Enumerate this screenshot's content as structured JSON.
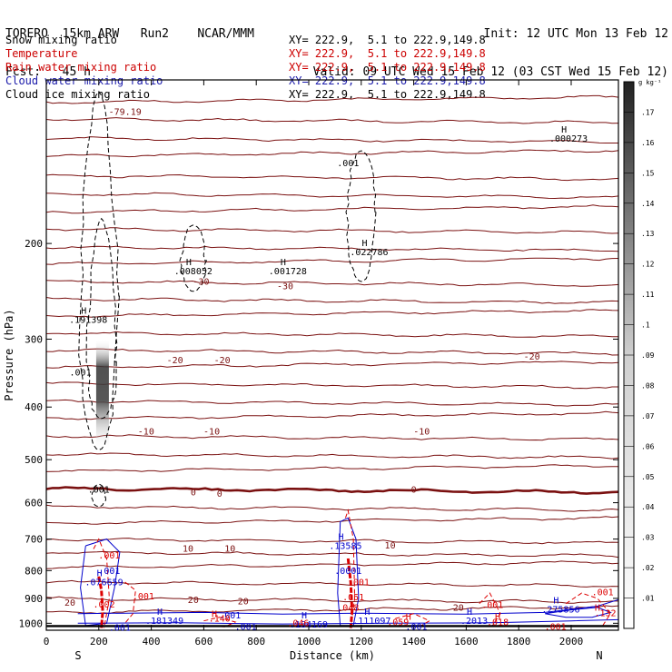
{
  "header": {
    "line1_left": "TORERO  15km ARW   Run2    NCAR/MMM",
    "line2_left": "Fcst:   45 h",
    "line1_right": "Init: 12 UTC Mon 13 Feb 12",
    "line2_right": "Valid: 09 UTC Wed 15 Feb 12 (03 CST Wed 15 Feb 12)"
  },
  "variables": [
    {
      "label": "Snow mixing ratio",
      "xy": "XY= 222.9,  5.1 to 222.9,149.8",
      "color": "#000000"
    },
    {
      "label": "Temperature",
      "xy": "XY= 222.9,  5.1 to 222.9,149.8",
      "color": "#cc0000"
    },
    {
      "label": "Rain water mixing ratio",
      "xy": "XY= 222.9,  5.1 to 222.9,149.8",
      "color": "#cc0000"
    },
    {
      "label": "Cloud water mixing ratio",
      "xy": "XY= 222.9,  5.1 to 222.9,149.8",
      "color": "#1a1aaa"
    },
    {
      "label": "Cloud ice mixing ratio",
      "xy": "XY= 222.9,  5.1 to 222.9,149.8",
      "color": "#000000"
    }
  ],
  "colors": {
    "temperature": "#7a1010",
    "rain": "#dd0000",
    "cloud_water": "#0000cc",
    "snow_shade": "#333333",
    "ice": "#000000"
  },
  "chart_data": {
    "type": "contour",
    "xlabel": "Distance (km)",
    "ylabel": "Pressure (hPa)",
    "x_ticks": [
      0,
      200,
      400,
      600,
      800,
      1000,
      1200,
      1400,
      1600,
      1800,
      2000
    ],
    "xlim": [
      0,
      2180
    ],
    "y_ticks": [
      200,
      300,
      400,
      500,
      600,
      700,
      800,
      900,
      1000
    ],
    "ylim": [
      100,
      1030
    ],
    "y_scale": "log",
    "x_end_labels": {
      "left": "S",
      "right": "N"
    },
    "colorbar": {
      "unit": "g kg⁻¹",
      "ticks": [
        ".01",
        ".02",
        ".03",
        ".04",
        ".05",
        ".06",
        ".07",
        ".08",
        ".09",
        ".1",
        ".11",
        ".12",
        ".13",
        ".14",
        ".15",
        ".16",
        ".17"
      ],
      "range": [
        0,
        0.18
      ]
    },
    "temperature_contours": {
      "interval": 10,
      "labeled_values": [
        {
          "value": "-30",
          "x": 590,
          "p": 238
        },
        {
          "value": "-30",
          "x": 910,
          "p": 243
        },
        {
          "value": "-20",
          "x": 490,
          "p": 332
        },
        {
          "value": "-20",
          "x": 670,
          "p": 332
        },
        {
          "value": "-20",
          "x": 1850,
          "p": 327
        },
        {
          "value": "-10",
          "x": 380,
          "p": 449
        },
        {
          "value": "-10",
          "x": 630,
          "p": 449
        },
        {
          "value": "-10",
          "x": 1430,
          "p": 449
        },
        {
          "value": "0",
          "x": 560,
          "p": 582
        },
        {
          "value": "0",
          "x": 660,
          "p": 585
        },
        {
          "value": "0",
          "x": 1400,
          "p": 575
        },
        {
          "value": "10",
          "x": 540,
          "p": 738
        },
        {
          "value": "10",
          "x": 700,
          "p": 738
        },
        {
          "value": "10",
          "x": 1310,
          "p": 728
        },
        {
          "value": "20",
          "x": 90,
          "p": 928
        },
        {
          "value": "20",
          "x": 560,
          "p": 918
        },
        {
          "value": "20",
          "x": 750,
          "p": 923
        },
        {
          "value": "20",
          "x": 1570,
          "p": 948
        }
      ],
      "label_top": {
        "value": "-79.19",
        "x": 300,
        "p": 116
      }
    },
    "snow_highs": [
      {
        "label": ".191398",
        "x": 160,
        "p": 280
      },
      {
        "label": ".008052",
        "x": 560,
        "p": 228
      },
      {
        "label": ".001728",
        "x": 920,
        "p": 228
      },
      {
        "label": ".022786",
        "x": 1230,
        "p": 210
      },
      {
        "label": ".000273",
        "x": 1990,
        "p": 130
      }
    ],
    "snow_contour_labels": [
      {
        "label": ".001",
        "x": 130,
        "p": 350
      },
      {
        "label": ".001",
        "x": 200,
        "p": 575
      },
      {
        "label": ".001",
        "x": 1150,
        "p": 144
      }
    ],
    "cloud_water_highs": [
      {
        "label": ".13585",
        "x": 1140,
        "p": 730
      },
      {
        "label": ".076659",
        "x": 220,
        "p": 852
      },
      {
        "label": ".181349",
        "x": 450,
        "p": 1003
      },
      {
        "label": ".184169",
        "x": 1000,
        "p": 1018
      },
      {
        "label": ".111097",
        "x": 1240,
        "p": 1003
      },
      {
        "label": ".2013",
        "x": 1630,
        "p": 1003
      },
      {
        "label": ".275856",
        "x": 1960,
        "p": 955
      }
    ],
    "cloud_water_labels": [
      {
        "label": ".001",
        "x": 240,
        "p": 812
      },
      {
        "label": ".0001",
        "x": 1150,
        "p": 812
      },
      {
        "label": ".001",
        "x": 280,
        "p": 1032
      },
      {
        "label": ".001",
        "x": 760,
        "p": 1028
      },
      {
        "label": ".001",
        "x": 1410,
        "p": 1028
      },
      {
        "label": ".001",
        "x": 700,
        "p": 980
      }
    ],
    "rain_labels": [
      {
        "label": ".001",
        "x": 240,
        "p": 760
      },
      {
        "label": ".001",
        "x": 370,
        "p": 903
      },
      {
        "label": ".002",
        "x": 220,
        "p": 935
      },
      {
        "label": ".001",
        "x": 1190,
        "p": 852
      },
      {
        "label": ".051",
        "x": 1170,
        "p": 908
      },
      {
        "label": ".048",
        "x": 1150,
        "p": 948
      },
      {
        "label": ".046",
        "x": 960,
        "p": 1013
      },
      {
        "label": ".059",
        "x": 1340,
        "p": 1008
      },
      {
        "label": ".018",
        "x": 1720,
        "p": 1008
      },
      {
        "label": ".001",
        "x": 1700,
        "p": 938
      },
      {
        "label": ".001",
        "x": 2120,
        "p": 888
      },
      {
        "label": ".001",
        "x": 1940,
        "p": 1028
      },
      {
        "label": ".140",
        "x": 660,
        "p": 993
      },
      {
        "label": ".132",
        "x": 2130,
        "p": 970
      }
    ],
    "rain_highs": [
      {
        "label": "H",
        "x": 640,
        "p": 975
      },
      {
        "label": "H",
        "x": 1380,
        "p": 985
      },
      {
        "label": "H",
        "x": 1720,
        "p": 985
      },
      {
        "label": "H",
        "x": 2100,
        "p": 948
      }
    ]
  }
}
